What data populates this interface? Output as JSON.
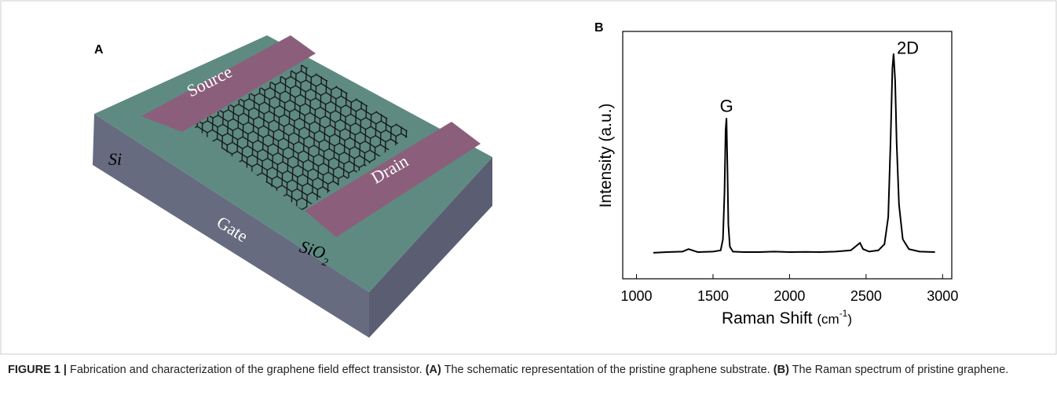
{
  "panel_a": {
    "label": "A",
    "source": "Source",
    "drain": "Drain",
    "si": "Si",
    "gate": "Gate",
    "sio2": "SiO",
    "sio2_sub": "2"
  },
  "chart_data": {
    "type": "line",
    "panel_label": "B",
    "ylabel": "Intensity (a.u.)",
    "xlabel": "Raman Shift",
    "xlabel_unit": "(cm",
    "xlabel_exp": "-1",
    "xlabel_close": ")",
    "annotations": [
      {
        "text": "G",
        "x": 1588,
        "y": 65
      },
      {
        "text": "2D",
        "x": 2680,
        "y": 91
      }
    ],
    "xlim": [
      910,
      3060
    ],
    "ylim": [
      0,
      100
    ],
    "xticks": [
      1000,
      1500,
      2000,
      2500,
      3000
    ],
    "x": [
      1110,
      1200,
      1300,
      1340,
      1400,
      1500,
      1550,
      1565,
      1575,
      1582,
      1588,
      1594,
      1600,
      1610,
      1630,
      1700,
      1800,
      1900,
      2000,
      2100,
      2200,
      2300,
      2400,
      2440,
      2460,
      2480,
      2520,
      2580,
      2620,
      2645,
      2660,
      2672,
      2680,
      2690,
      2700,
      2715,
      2740,
      2780,
      2850,
      2950
    ],
    "y": [
      10.5,
      10.8,
      11,
      12,
      10.8,
      11,
      11.5,
      16,
      35,
      60,
      65,
      45,
      22,
      13,
      11,
      10.8,
      10.8,
      11,
      10.8,
      10.9,
      10.8,
      11,
      11.5,
      13.5,
      14.5,
      12,
      11,
      11.5,
      14,
      25,
      55,
      85,
      91,
      80,
      55,
      30,
      16,
      12,
      11,
      10.8
    ],
    "color": "#000000"
  },
  "caption": {
    "label": "FIGURE 1 |",
    "text1": " Fabrication and characterization of the graphene field effect transistor. ",
    "ref_a": "(A)",
    "text2": " The schematic representation of the pristine graphene substrate. ",
    "ref_b": "(B)",
    "text3": " The Raman spectrum of pristine graphene."
  }
}
